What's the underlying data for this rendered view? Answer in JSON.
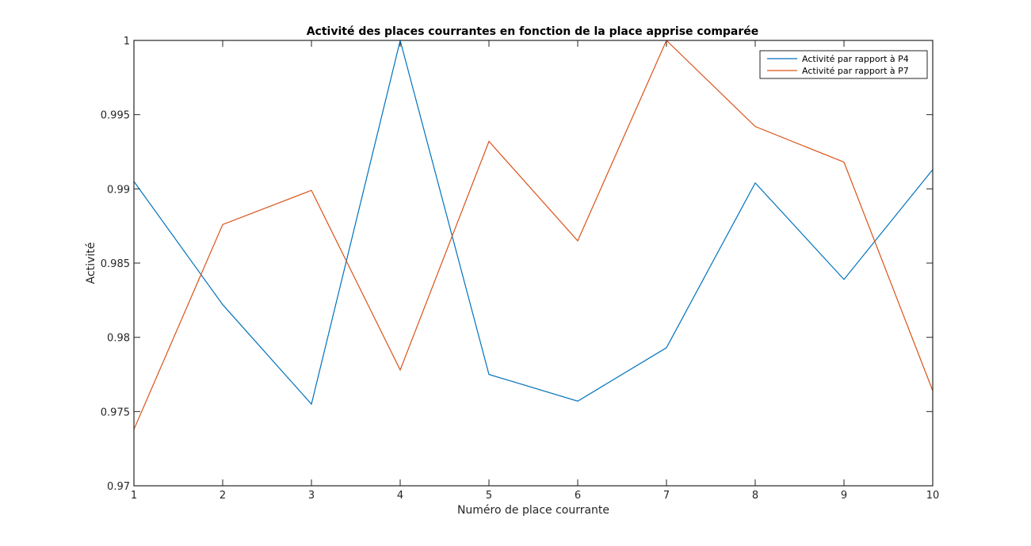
{
  "chart_data": {
    "type": "line",
    "title": "Activité des places courrantes en fonction de la place apprise comparée",
    "xlabel": "Numéro de place courrante",
    "ylabel": "Activité",
    "x": [
      1,
      2,
      3,
      4,
      5,
      6,
      7,
      8,
      9,
      10
    ],
    "xlim": [
      1,
      10
    ],
    "ylim": [
      0.97,
      1
    ],
    "xticks": [
      1,
      2,
      3,
      4,
      5,
      6,
      7,
      8,
      9,
      10
    ],
    "yticks": [
      0.97,
      0.975,
      0.98,
      0.985,
      0.99,
      0.995,
      1
    ],
    "ytick_labels": [
      "0.97",
      "0.975",
      "0.98",
      "0.985",
      "0.99",
      "0.995",
      "1"
    ],
    "grid": false,
    "legend_position": "top-right",
    "series": [
      {
        "name": "Activité par rapport à P4",
        "color": "#0072BD",
        "values": [
          0.9905,
          0.9822,
          0.9755,
          1.0,
          0.9775,
          0.9757,
          0.9793,
          0.9904,
          0.9839,
          0.9913
        ]
      },
      {
        "name": "Activité par rapport à P7",
        "color": "#D95319",
        "values": [
          0.9738,
          0.9876,
          0.9899,
          0.9778,
          0.9932,
          0.9865,
          1.0,
          0.9942,
          0.9918,
          0.9764
        ]
      }
    ]
  }
}
